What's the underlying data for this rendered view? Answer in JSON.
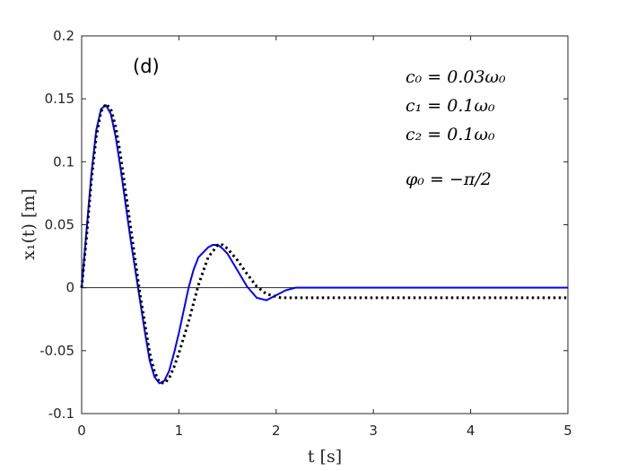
{
  "chart_data": {
    "type": "line",
    "panel_label": "(d)",
    "xlabel": "t [s]",
    "ylabel": "x₁(t) [m]",
    "xlim": [
      0,
      5
    ],
    "ylim": [
      -0.1,
      0.2
    ],
    "xticks": [
      0,
      1,
      2,
      3,
      4,
      5
    ],
    "xtick_labels": [
      "0",
      "1",
      "2",
      "3",
      "4",
      "5"
    ],
    "yticks": [
      -0.1,
      -0.05,
      0,
      0.05,
      0.1,
      0.15,
      0.2
    ],
    "ytick_labels": [
      "-0.1",
      "-0.05",
      "0",
      "0.05",
      "0.1",
      "0.15",
      "0.2"
    ],
    "grid": false,
    "zero_line": true,
    "annotations": [
      "c₀ = 0.03ω₀",
      "c₁ = 0.1ω₀",
      "c₂ = 0.1ω₀",
      "φ₀ = −π/2"
    ],
    "series": [
      {
        "style": "solid",
        "color": "#0000ff",
        "x": [
          0,
          0.05,
          0.1,
          0.15,
          0.2,
          0.25,
          0.3,
          0.35,
          0.4,
          0.5,
          0.58,
          0.65,
          0.7,
          0.75,
          0.8,
          0.85,
          0.9,
          0.95,
          1.0,
          1.1,
          1.15,
          1.2,
          1.3,
          1.35,
          1.4,
          1.45,
          1.5,
          1.6,
          1.7,
          1.8,
          1.9,
          2.0,
          2.1,
          2.2,
          2.3,
          2.5,
          3.0,
          4.0,
          5.0
        ],
        "y": [
          0,
          0.045,
          0.09,
          0.125,
          0.142,
          0.145,
          0.138,
          0.12,
          0.095,
          0.04,
          0,
          -0.035,
          -0.058,
          -0.071,
          -0.076,
          -0.074,
          -0.066,
          -0.052,
          -0.036,
          0,
          0.014,
          0.024,
          0.032,
          0.034,
          0.034,
          0.031,
          0.027,
          0.014,
          0.001,
          -0.008,
          -0.01,
          -0.006,
          -0.002,
          0,
          0,
          0,
          0,
          0,
          0
        ]
      },
      {
        "style": "dotted",
        "color": "#000000",
        "x": [
          0,
          0.05,
          0.1,
          0.15,
          0.2,
          0.25,
          0.3,
          0.35,
          0.4,
          0.5,
          0.6,
          0.7,
          0.75,
          0.8,
          0.85,
          0.9,
          0.95,
          1.0,
          1.1,
          1.2,
          1.3,
          1.4,
          1.45,
          1.5,
          1.6,
          1.7,
          1.8,
          1.9,
          2.0,
          2.05,
          2.2,
          3.0,
          4.0,
          5.0
        ],
        "y": [
          0,
          0.04,
          0.085,
          0.12,
          0.14,
          0.146,
          0.142,
          0.128,
          0.105,
          0.05,
          -0.005,
          -0.052,
          -0.067,
          -0.075,
          -0.076,
          -0.072,
          -0.063,
          -0.052,
          -0.027,
          0.002,
          0.024,
          0.034,
          0.034,
          0.031,
          0.022,
          0.011,
          0.001,
          -0.005,
          -0.007,
          -0.008,
          -0.008,
          -0.008,
          -0.008,
          -0.008
        ]
      }
    ]
  }
}
